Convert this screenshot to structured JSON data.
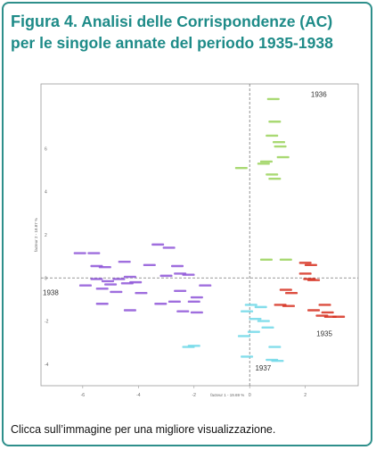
{
  "title": {
    "figure_label": "Figura 4.",
    "line1": "Analisi delle Corrispondenze (AC)",
    "line2": "per le singole annate del periodo 1935-1938"
  },
  "caption": "Clicca sull’immagine per una migliore visualizzazione.",
  "colors": {
    "title": "#1e8b88",
    "border": "#2e8f8b",
    "year_1935": "#d62f1f",
    "year_1936": "#9ad25a",
    "year_1937": "#6fd8e8",
    "year_1938": "#8e55d8"
  },
  "chart_data": {
    "type": "scatter",
    "xlabel": "facteur 1 - 19.69 %",
    "ylabel": "facteur 2 - 18.87 %",
    "xlim": [
      -7.5,
      3.9
    ],
    "ylim": [
      -5.0,
      9.0
    ],
    "xticks": [
      -6,
      -4,
      -2,
      0,
      2
    ],
    "yticks": [
      -4,
      -2,
      0,
      2,
      4,
      6
    ],
    "grid": false,
    "group_labels": [
      {
        "text": "1936",
        "x": 2.2,
        "y": 8.4
      },
      {
        "text": "1935",
        "x": 2.4,
        "y": -2.7
      },
      {
        "text": "1938",
        "x": -8.1,
        "y": -0.8
      },
      {
        "text": "1937",
        "x": 0.2,
        "y": -4.3
      }
    ],
    "series": [
      {
        "points": [
          [
            0.85,
            8.3
          ],
          [
            0.9,
            7.25
          ],
          [
            0.8,
            6.6
          ],
          [
            1.05,
            6.3
          ],
          [
            1.1,
            6.1
          ],
          [
            1.2,
            5.6
          ],
          [
            0.5,
            5.3
          ],
          [
            0.6,
            5.4
          ],
          [
            -0.3,
            5.1
          ],
          [
            0.8,
            4.8
          ],
          [
            0.9,
            4.6
          ],
          [
            1.3,
            0.85
          ],
          [
            0.6,
            0.85
          ]
        ]
      },
      {
        "points": [
          [
            2.0,
            0.7
          ],
          [
            2.2,
            0.6
          ],
          [
            2.0,
            0.2
          ],
          [
            2.15,
            -0.05
          ],
          [
            2.3,
            -0.1
          ],
          [
            1.3,
            -0.55
          ],
          [
            1.5,
            -0.7
          ],
          [
            2.7,
            -1.25
          ],
          [
            2.3,
            -1.5
          ],
          [
            2.8,
            -1.6
          ],
          [
            2.6,
            -1.75
          ],
          [
            2.9,
            -1.8
          ],
          [
            3.2,
            -1.8
          ],
          [
            1.1,
            -1.25
          ],
          [
            1.4,
            -1.3
          ]
        ]
      },
      {
        "points": [
          [
            0.05,
            -1.25
          ],
          [
            0.4,
            -1.35
          ],
          [
            -0.1,
            -1.55
          ],
          [
            0.2,
            -1.9
          ],
          [
            0.5,
            -2.0
          ],
          [
            0.65,
            -2.3
          ],
          [
            0.15,
            -2.5
          ],
          [
            -0.2,
            -2.7
          ],
          [
            0.9,
            -3.2
          ],
          [
            -2.2,
            -3.2
          ],
          [
            -2.0,
            -3.15
          ],
          [
            0.8,
            -3.8
          ],
          [
            1.0,
            -3.85
          ],
          [
            -0.1,
            -3.65
          ]
        ]
      },
      {
        "points": [
          [
            -3.3,
            1.55
          ],
          [
            -2.9,
            1.4
          ],
          [
            -5.6,
            1.15
          ],
          [
            -6.1,
            1.15
          ],
          [
            -4.5,
            0.75
          ],
          [
            -5.5,
            0.55
          ],
          [
            -5.2,
            0.5
          ],
          [
            -3.6,
            0.6
          ],
          [
            -2.6,
            0.55
          ],
          [
            -2.5,
            0.2
          ],
          [
            -3.0,
            0.1
          ],
          [
            -2.2,
            0.15
          ],
          [
            -4.3,
            0.05
          ],
          [
            -4.7,
            -0.05
          ],
          [
            -5.5,
            -0.05
          ],
          [
            -5.1,
            -0.15
          ],
          [
            -4.4,
            -0.25
          ],
          [
            -4.1,
            -0.2
          ],
          [
            -5.0,
            -0.3
          ],
          [
            -5.9,
            -0.35
          ],
          [
            -5.3,
            -0.5
          ],
          [
            -4.8,
            -0.65
          ],
          [
            -3.9,
            -0.7
          ],
          [
            -1.6,
            -0.35
          ],
          [
            -2.5,
            -0.6
          ],
          [
            -1.9,
            -0.9
          ],
          [
            -2.7,
            -1.1
          ],
          [
            -3.2,
            -1.2
          ],
          [
            -2.0,
            -1.1
          ],
          [
            -5.3,
            -1.2
          ],
          [
            -4.3,
            -1.5
          ],
          [
            -2.4,
            -1.55
          ],
          [
            -1.9,
            -1.6
          ]
        ]
      }
    ]
  }
}
